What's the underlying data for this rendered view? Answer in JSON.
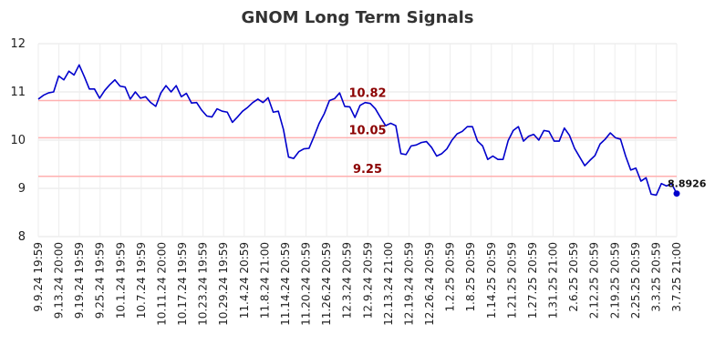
{
  "chart_data": {
    "type": "line",
    "title": "GNOM Long Term Signals",
    "ylim": [
      8,
      12
    ],
    "yticks": [
      "8",
      "9",
      "10",
      "11",
      "12"
    ],
    "grid": true,
    "xticks": [
      "9.9.24 19:59",
      "9.13.24 20:00",
      "9.19.24 19:59",
      "9.25.24 19:59",
      "10.1.24 19:59",
      "10.7.24 19:59",
      "10.11.24 20:00",
      "10.17.24 19:59",
      "10.23.24 19:59",
      "10.29.24 19:59",
      "11.4.24 20:59",
      "11.8.24 21:00",
      "11.14.24 20:59",
      "11.20.24 20:59",
      "11.26.24 20:59",
      "12.3.24 20:59",
      "12.9.24 20:59",
      "12.13.24 21:00",
      "12.19.24 20:59",
      "12.26.24 20:59",
      "1.2.25 20:59",
      "1.8.25 20:59",
      "1.14.25 20:59",
      "1.21.25 20:59",
      "1.27.25 20:59",
      "1.31.25 21:00",
      "2.6.25 20:59",
      "2.12.25 20:59",
      "2.19.25 20:59",
      "2.25.25 20:59",
      "3.3.25 20:59",
      "3.7.25 21:00"
    ],
    "series": [
      {
        "color": "#0000cc",
        "values": [
          10.85,
          10.93,
          10.98,
          11.0,
          11.33,
          11.25,
          11.43,
          11.35,
          11.56,
          11.32,
          11.06,
          11.06,
          10.87,
          11.03,
          11.15,
          11.25,
          11.12,
          11.1,
          10.85,
          11.0,
          10.87,
          10.9,
          10.78,
          10.7,
          10.98,
          11.13,
          11.0,
          11.13,
          10.9,
          10.97,
          10.77,
          10.78,
          10.62,
          10.5,
          10.48,
          10.65,
          10.6,
          10.58,
          10.37,
          10.48,
          10.6,
          10.68,
          10.78,
          10.85,
          10.78,
          10.88,
          10.58,
          10.6,
          10.22,
          9.65,
          9.62,
          9.76,
          9.82,
          9.83,
          10.08,
          10.35,
          10.55,
          10.82,
          10.86,
          10.98,
          10.7,
          10.69,
          10.47,
          10.72,
          10.78,
          10.76,
          10.65,
          10.47,
          10.3,
          10.35,
          10.3,
          9.72,
          9.7,
          9.88,
          9.9,
          9.95,
          9.97,
          9.85,
          9.67,
          9.72,
          9.82,
          10.0,
          10.13,
          10.18,
          10.28,
          10.28,
          9.98,
          9.88,
          9.6,
          9.67,
          9.6,
          9.6,
          9.99,
          10.2,
          10.28,
          9.98,
          10.08,
          10.12,
          10.0,
          10.2,
          10.18,
          9.98,
          9.98,
          10.25,
          10.1,
          9.83,
          9.65,
          9.47,
          9.58,
          9.68,
          9.92,
          10.02,
          10.15,
          10.05,
          10.02,
          9.67,
          9.38,
          9.42,
          9.15,
          9.22,
          8.88,
          8.86,
          9.1,
          9.05,
          9.1,
          8.8926
        ]
      }
    ],
    "reference_lines": [
      {
        "value": 10.82,
        "label": "10.82"
      },
      {
        "value": 10.05,
        "label": "10.05"
      },
      {
        "value": 9.25,
        "label": "9.25"
      }
    ],
    "reference_color": "#ffb0b0",
    "reference_label_color": "#8b0000",
    "last_value_label": "8.8926"
  }
}
